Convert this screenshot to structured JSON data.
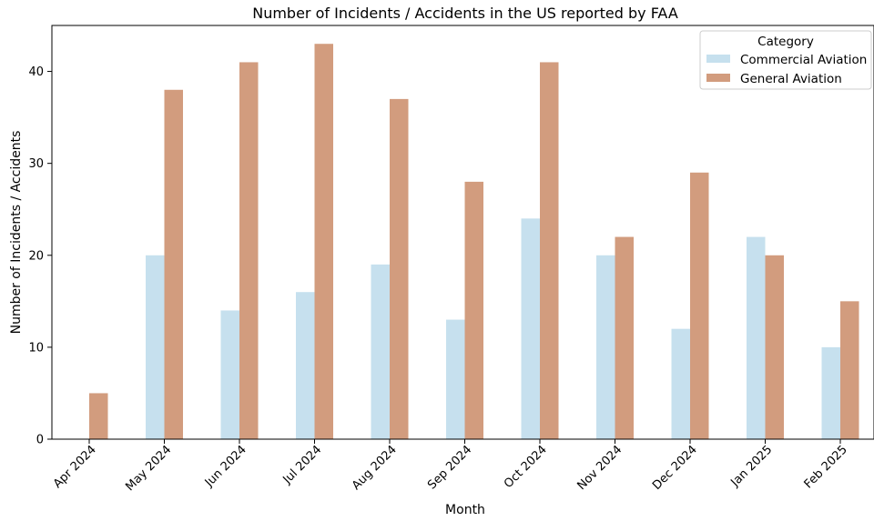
{
  "chart_data": {
    "type": "bar",
    "title": "Number of Incidents / Accidents in the US reported by FAA",
    "xlabel": "Month",
    "ylabel": "Number of Incidents / Accidents",
    "categories": [
      "Apr 2024",
      "May 2024",
      "Jun 2024",
      "Jul 2024",
      "Aug 2024",
      "Sep 2024",
      "Oct 2024",
      "Nov 2024",
      "Dec 2024",
      "Jan 2025",
      "Feb 2025"
    ],
    "series": [
      {
        "name": "Commercial Aviation",
        "color": "#c6e0ee",
        "values": [
          0,
          20,
          14,
          16,
          19,
          13,
          24,
          20,
          12,
          22,
          10
        ]
      },
      {
        "name": "General Aviation",
        "color": "#d29c7e",
        "values": [
          5,
          38,
          41,
          43,
          37,
          28,
          41,
          22,
          29,
          20,
          15
        ]
      }
    ],
    "ylim": [
      0,
      45
    ],
    "yticks": [
      0,
      10,
      20,
      30,
      40
    ],
    "legend": {
      "title": "Category",
      "position": "top-right"
    },
    "grid": false
  }
}
